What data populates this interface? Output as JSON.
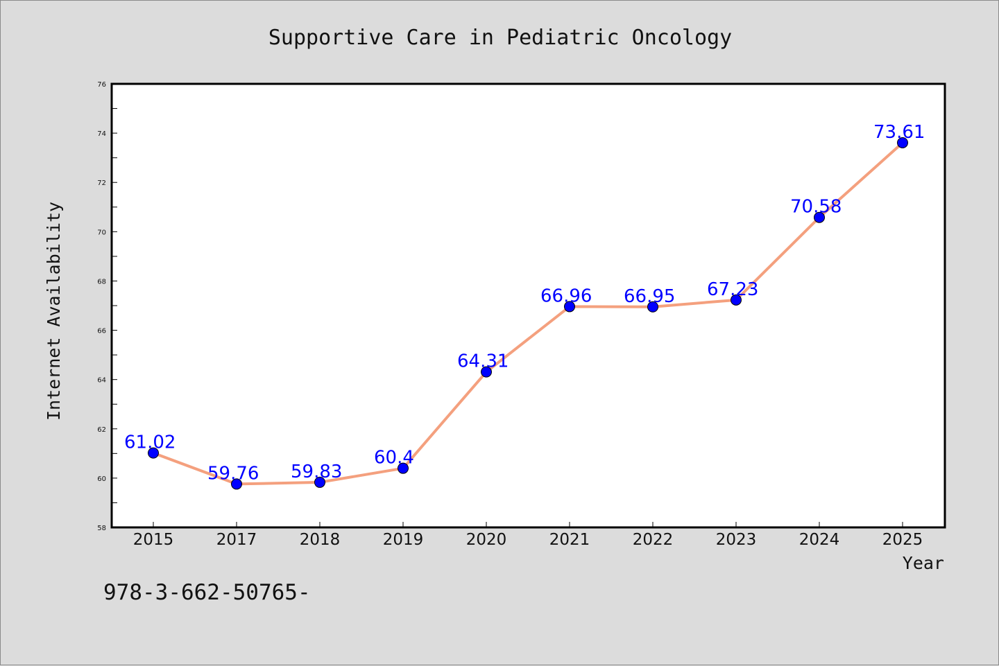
{
  "chart_data": {
    "type": "line",
    "title": "Supportive Care in Pediatric Oncology",
    "xlabel": "Year",
    "ylabel": "Internet Availability",
    "categories": [
      "2015",
      "2017",
      "2018",
      "2019",
      "2020",
      "2021",
      "2022",
      "2023",
      "2024",
      "2025"
    ],
    "values": [
      61.02,
      59.76,
      59.83,
      60.4,
      64.31,
      66.96,
      66.95,
      67.23,
      70.58,
      73.61
    ],
    "data_labels": [
      "61.02",
      "59.76",
      "59.83",
      "60.4",
      "64.31",
      "66.96",
      "66.95",
      "67.23",
      "70.58",
      "73.61"
    ],
    "ylim": [
      58,
      76
    ],
    "yticks": [
      58,
      60,
      62,
      64,
      66,
      68,
      70,
      72,
      74,
      76
    ],
    "grid": false,
    "line_color": "#f4a07e",
    "marker_color": "#0000ff",
    "label_color": "#0000ff"
  },
  "footer": {
    "text": "978-3-662-50765-"
  }
}
